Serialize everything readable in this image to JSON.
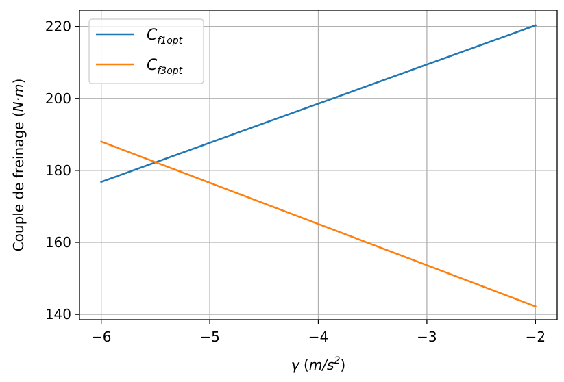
{
  "chart_data": {
    "type": "line",
    "title": "",
    "xlabel": "γ (m/s²)",
    "ylabel": "Couple de freinage (N·m)",
    "xlabel_parts": {
      "symbol": "γ",
      "open": " (",
      "unit": "m/s",
      "sup": "2",
      "close": ")"
    },
    "ylabel_parts": {
      "text": "Couple de freinage (",
      "unit": "N·m",
      "close": ")"
    },
    "xlim": [
      -6.2,
      -1.8
    ],
    "ylim": [
      138.5,
      224.5
    ],
    "xticks": [
      -6,
      -5,
      -4,
      -3,
      -2
    ],
    "xtick_labels": [
      "−6",
      "−5",
      "−4",
      "−3",
      "−2"
    ],
    "yticks": [
      140,
      160,
      180,
      200,
      220
    ],
    "ytick_labels": [
      "140",
      "160",
      "180",
      "200",
      "220"
    ],
    "grid": true,
    "legend_position": "top-left",
    "series": [
      {
        "name": "Cf1opt",
        "label_main": "C",
        "label_sub": "f1opt",
        "color": "#1f77b4",
        "x": [
          -6,
          -2
        ],
        "y": [
          176.8,
          220.3
        ]
      },
      {
        "name": "Cf3opt",
        "label_main": "C",
        "label_sub": "f3opt",
        "color": "#ff7f0e",
        "x": [
          -6,
          -2
        ],
        "y": [
          188.0,
          142.2
        ]
      }
    ]
  }
}
